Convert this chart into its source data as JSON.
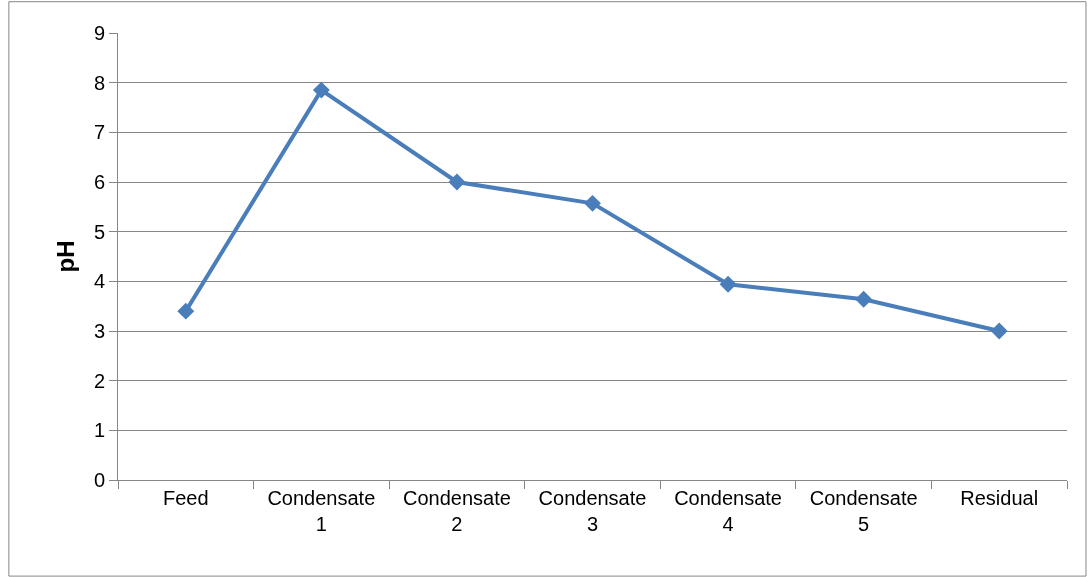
{
  "chart_data": {
    "type": "line",
    "ylabel": "pH",
    "categories": [
      "Feed",
      "Condensate 1",
      "Condensate 2",
      "Condensate 3",
      "Condensate 4",
      "Condensate 5",
      "Residual"
    ],
    "series": [
      {
        "color": "#4a7ebb",
        "values": [
          3.4,
          7.85,
          6.0,
          5.57,
          3.94,
          3.64,
          3.0
        ]
      }
    ],
    "ylim": [
      0,
      9
    ],
    "yticks": [
      0,
      1,
      2,
      3,
      4,
      5,
      6,
      7,
      8,
      9
    ],
    "grid": "y",
    "marker": "diamond",
    "line_style": "solid",
    "legend": false
  }
}
